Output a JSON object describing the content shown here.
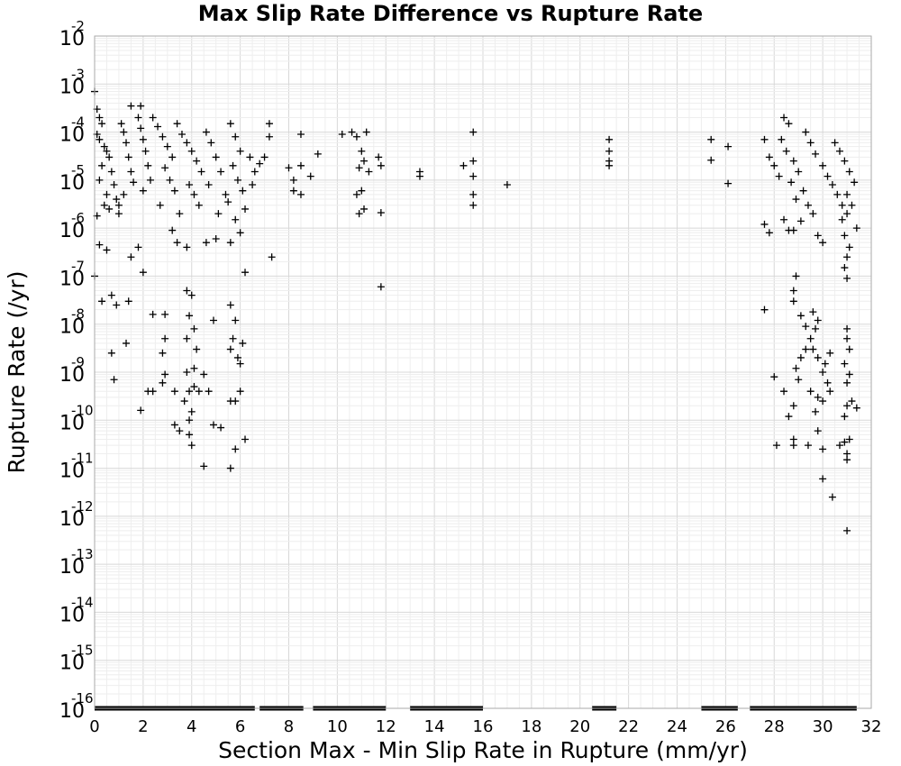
{
  "chart_data": {
    "type": "scatter",
    "title": "Max Slip Rate Difference vs Rupture Rate",
    "xlabel": "Section Max - Min Slip Rate in Rupture (mm/yr)",
    "ylabel": "Rupture Rate (/yr)",
    "xlim": [
      0,
      32
    ],
    "ylim": [
      1e-16,
      0.01
    ],
    "x_scale": "linear",
    "y_scale": "log",
    "grid": true,
    "x_ticks": [
      "0",
      "2",
      "4",
      "6",
      "8",
      "10",
      "12",
      "14",
      "16",
      "18",
      "20",
      "22",
      "24",
      "26",
      "28",
      "30",
      "32"
    ],
    "y_ticks": [
      {
        "base": "10",
        "exp": "-2"
      },
      {
        "base": "10",
        "exp": "-3"
      },
      {
        "base": "10",
        "exp": "-4"
      },
      {
        "base": "10",
        "exp": "-5"
      },
      {
        "base": "10",
        "exp": "-6"
      },
      {
        "base": "10",
        "exp": "-7"
      },
      {
        "base": "10",
        "exp": "-8"
      },
      {
        "base": "10",
        "exp": "-9"
      },
      {
        "base": "10",
        "exp": "-10"
      },
      {
        "base": "10",
        "exp": "-11"
      },
      {
        "base": "10",
        "exp": "-12"
      },
      {
        "base": "10",
        "exp": "-13"
      },
      {
        "base": "10",
        "exp": "-14"
      },
      {
        "base": "10",
        "exp": "-15"
      },
      {
        "base": "10",
        "exp": "-16"
      }
    ],
    "marker": "+",
    "marker_color": "#000000",
    "series": [
      {
        "points": [
          [
            0.0,
            0.0007
          ],
          [
            0.0,
            1e-07
          ],
          [
            0.1,
            0.0003
          ],
          [
            0.2,
            0.0002
          ],
          [
            0.3,
            0.00015
          ],
          [
            0.1,
            9e-05
          ],
          [
            0.2,
            7e-05
          ],
          [
            0.4,
            5e-05
          ],
          [
            0.5,
            4e-05
          ],
          [
            0.6,
            3e-05
          ],
          [
            0.3,
            2e-05
          ],
          [
            0.7,
            1.5e-05
          ],
          [
            0.2,
            1e-05
          ],
          [
            0.8,
            8e-06
          ],
          [
            0.5,
            5e-06
          ],
          [
            0.9,
            4e-06
          ],
          [
            0.4,
            3e-06
          ],
          [
            1.0,
            2e-06
          ],
          [
            0.1,
            1.8e-06
          ],
          [
            0.6,
            2.5e-06
          ],
          [
            1.1,
            0.00015
          ],
          [
            1.2,
            0.0001
          ],
          [
            1.3,
            6e-05
          ],
          [
            1.4,
            3e-05
          ],
          [
            1.5,
            1.5e-05
          ],
          [
            1.6,
            9e-06
          ],
          [
            1.2,
            5e-06
          ],
          [
            1.0,
            3e-06
          ],
          [
            1.8,
            0.0002
          ],
          [
            1.9,
            0.00012
          ],
          [
            2.0,
            7e-05
          ],
          [
            2.1,
            4e-05
          ],
          [
            2.2,
            2e-05
          ],
          [
            2.3,
            1e-05
          ],
          [
            2.0,
            6e-06
          ],
          [
            1.5,
            0.00035
          ],
          [
            1.9,
            0.00035
          ],
          [
            2.4,
            0.0002
          ],
          [
            2.6,
            0.00013
          ],
          [
            2.8,
            8e-05
          ],
          [
            3.0,
            5e-05
          ],
          [
            3.2,
            3e-05
          ],
          [
            2.9,
            1.8e-05
          ],
          [
            3.1,
            1e-05
          ],
          [
            3.3,
            6e-06
          ],
          [
            2.7,
            3e-06
          ],
          [
            3.4,
            0.00015
          ],
          [
            3.6,
            9e-05
          ],
          [
            3.8,
            6e-05
          ],
          [
            4.0,
            4e-05
          ],
          [
            4.2,
            2.5e-05
          ],
          [
            4.4,
            1.5e-05
          ],
          [
            3.9,
            8e-06
          ],
          [
            4.1,
            5e-06
          ],
          [
            4.3,
            3e-06
          ],
          [
            3.5,
            2e-06
          ],
          [
            4.6,
            0.0001
          ],
          [
            4.8,
            6e-05
          ],
          [
            5.0,
            3e-05
          ],
          [
            5.2,
            1.5e-05
          ],
          [
            4.7,
            8e-06
          ],
          [
            5.4,
            5e-06
          ],
          [
            5.1,
            2e-06
          ],
          [
            5.6,
            0.00015
          ],
          [
            5.8,
            8e-05
          ],
          [
            6.0,
            4e-05
          ],
          [
            5.7,
            2e-05
          ],
          [
            5.9,
            1e-05
          ],
          [
            6.1,
            6e-06
          ],
          [
            5.5,
            3.5e-06
          ],
          [
            6.2,
            2.5e-06
          ],
          [
            5.8,
            1.5e-06
          ],
          [
            6.0,
            8e-07
          ],
          [
            5.6,
            5e-07
          ],
          [
            6.4,
            3e-05
          ],
          [
            6.6,
            1.5e-05
          ],
          [
            6.5,
            8e-06
          ],
          [
            6.2,
            1.2e-07
          ],
          [
            0.2,
            4.5e-07
          ],
          [
            0.5,
            3.5e-07
          ],
          [
            1.5,
            2.5e-07
          ],
          [
            1.8,
            4e-07
          ],
          [
            2.0,
            1.2e-07
          ],
          [
            3.2,
            9e-07
          ],
          [
            3.4,
            5e-07
          ],
          [
            3.8,
            4e-07
          ],
          [
            4.6,
            5e-07
          ],
          [
            5.0,
            6e-07
          ],
          [
            0.3,
            3e-08
          ],
          [
            0.7,
            4e-08
          ],
          [
            0.9,
            2.5e-08
          ],
          [
            1.4,
            3e-08
          ],
          [
            2.4,
            1.6e-08
          ],
          [
            2.9,
            1.6e-08
          ],
          [
            3.8,
            5e-08
          ],
          [
            4.0,
            4e-08
          ],
          [
            3.9,
            1.5e-08
          ],
          [
            4.1,
            8e-09
          ],
          [
            3.8,
            5e-09
          ],
          [
            4.2,
            3e-09
          ],
          [
            4.9,
            1.2e-08
          ],
          [
            5.6,
            2.5e-08
          ],
          [
            5.8,
            1.2e-08
          ],
          [
            5.7,
            5e-09
          ],
          [
            6.1,
            4e-09
          ],
          [
            5.9,
            2e-09
          ],
          [
            6.0,
            1.5e-09
          ],
          [
            5.6,
            3e-09
          ],
          [
            1.3,
            4e-09
          ],
          [
            0.7,
            2.5e-09
          ],
          [
            2.8,
            2.5e-09
          ],
          [
            2.9,
            5e-09
          ],
          [
            3.8,
            1e-09
          ],
          [
            4.1,
            1.2e-09
          ],
          [
            4.5,
            9e-10
          ],
          [
            2.9,
            9e-10
          ],
          [
            2.8,
            6e-10
          ],
          [
            2.4,
            4e-10
          ],
          [
            2.2,
            4e-10
          ],
          [
            3.3,
            4e-10
          ],
          [
            3.7,
            2.5e-10
          ],
          [
            3.9,
            4e-10
          ],
          [
            4.1,
            5e-10
          ],
          [
            4.3,
            4e-10
          ],
          [
            4.7,
            4e-10
          ],
          [
            5.6,
            2.5e-10
          ],
          [
            5.8,
            2.5e-10
          ],
          [
            6.0,
            4e-10
          ],
          [
            0.8,
            7e-10
          ],
          [
            1.9,
            1.6e-10
          ],
          [
            3.3,
            8e-11
          ],
          [
            3.5,
            6e-11
          ],
          [
            3.9,
            5e-11
          ],
          [
            4.0,
            3e-11
          ],
          [
            3.9,
            1e-10
          ],
          [
            4.0,
            1.5e-10
          ],
          [
            4.9,
            8e-11
          ],
          [
            5.2,
            7e-11
          ],
          [
            5.8,
            2.5e-11
          ],
          [
            6.2,
            4e-11
          ],
          [
            5.6,
            1e-11
          ],
          [
            4.5,
            1.1e-11
          ],
          [
            6.8,
            2.2e-05
          ],
          [
            7.0,
            3e-05
          ],
          [
            7.2,
            0.00015
          ],
          [
            7.2,
            8e-05
          ],
          [
            7.3,
            2.5e-07
          ],
          [
            8.0,
            1.8e-05
          ],
          [
            8.2,
            1e-05
          ],
          [
            8.2,
            6e-06
          ],
          [
            8.5,
            9e-05
          ],
          [
            8.5,
            2e-05
          ],
          [
            8.5,
            5e-06
          ],
          [
            8.9,
            1.2e-05
          ],
          [
            9.2,
            3.5e-05
          ],
          [
            10.2,
            9e-05
          ],
          [
            10.6,
            0.0001
          ],
          [
            10.8,
            8e-05
          ],
          [
            11.0,
            4e-05
          ],
          [
            11.1,
            2.5e-05
          ],
          [
            10.9,
            1.8e-05
          ],
          [
            11.3,
            1.5e-05
          ],
          [
            11.0,
            6e-06
          ],
          [
            10.8,
            5e-06
          ],
          [
            11.1,
            2.5e-06
          ],
          [
            10.9,
            2e-06
          ],
          [
            11.2,
            0.0001
          ],
          [
            11.7,
            3e-05
          ],
          [
            11.8,
            2e-05
          ],
          [
            11.8,
            2.1e-06
          ],
          [
            11.8,
            6e-08
          ],
          [
            13.4,
            1.5e-05
          ],
          [
            13.4,
            1.2e-05
          ],
          [
            15.2,
            2e-05
          ],
          [
            15.6,
            0.0001
          ],
          [
            15.6,
            2.5e-05
          ],
          [
            15.6,
            1.2e-05
          ],
          [
            15.6,
            5e-06
          ],
          [
            15.6,
            3e-06
          ],
          [
            17.0,
            8e-06
          ],
          [
            21.2,
            7e-05
          ],
          [
            21.2,
            4e-05
          ],
          [
            21.2,
            2.5e-05
          ],
          [
            21.2,
            2e-05
          ],
          [
            25.4,
            7e-05
          ],
          [
            25.4,
            2.6e-05
          ],
          [
            26.1,
            5e-05
          ],
          [
            26.1,
            8.5e-06
          ],
          [
            27.6,
            7e-05
          ],
          [
            27.8,
            3e-05
          ],
          [
            28.0,
            2e-05
          ],
          [
            28.2,
            1.2e-05
          ],
          [
            28.4,
            0.0002
          ],
          [
            28.6,
            0.00015
          ],
          [
            28.3,
            7e-05
          ],
          [
            28.5,
            4e-05
          ],
          [
            28.8,
            2.5e-05
          ],
          [
            29.0,
            1.5e-05
          ],
          [
            28.7,
            9e-06
          ],
          [
            29.2,
            6e-06
          ],
          [
            28.9,
            4e-06
          ],
          [
            29.4,
            3e-06
          ],
          [
            29.6,
            2e-06
          ],
          [
            29.1,
            1.4e-06
          ],
          [
            28.8,
            9e-07
          ],
          [
            29.8,
            7e-07
          ],
          [
            30.0,
            5e-07
          ],
          [
            29.3,
            0.0001
          ],
          [
            29.5,
            6e-05
          ],
          [
            29.7,
            3.5e-05
          ],
          [
            30.0,
            2e-05
          ],
          [
            30.2,
            1.2e-05
          ],
          [
            30.4,
            8e-06
          ],
          [
            30.6,
            5e-06
          ],
          [
            30.8,
            3e-06
          ],
          [
            31.0,
            2e-06
          ],
          [
            30.5,
            6e-05
          ],
          [
            30.7,
            4e-05
          ],
          [
            30.9,
            2.5e-05
          ],
          [
            31.1,
            1.5e-05
          ],
          [
            31.3,
            9e-06
          ],
          [
            31.0,
            5e-06
          ],
          [
            31.2,
            3e-06
          ],
          [
            30.8,
            1.5e-06
          ],
          [
            31.4,
            1e-06
          ],
          [
            30.9,
            7e-07
          ],
          [
            31.1,
            4e-07
          ],
          [
            31.0,
            2.5e-07
          ],
          [
            30.9,
            1.5e-07
          ],
          [
            31.0,
            9e-08
          ],
          [
            27.6,
            1.2e-06
          ],
          [
            27.8,
            8e-07
          ],
          [
            28.4,
            1.5e-06
          ],
          [
            28.6,
            9e-07
          ],
          [
            28.9,
            1e-07
          ],
          [
            28.8,
            5e-08
          ],
          [
            28.8,
            3e-08
          ],
          [
            29.1,
            1.5e-08
          ],
          [
            29.3,
            9e-09
          ],
          [
            29.6,
            1.8e-08
          ],
          [
            29.8,
            1.2e-08
          ],
          [
            29.7,
            8e-09
          ],
          [
            29.5,
            5e-09
          ],
          [
            29.3,
            3e-09
          ],
          [
            29.1,
            2e-09
          ],
          [
            28.9,
            1.2e-09
          ],
          [
            29.6,
            3e-09
          ],
          [
            29.8,
            2e-09
          ],
          [
            30.1,
            1.5e-09
          ],
          [
            30.3,
            2.5e-09
          ],
          [
            30.0,
            1e-09
          ],
          [
            30.2,
            6e-10
          ],
          [
            30.3,
            4e-10
          ],
          [
            29.8,
            3e-10
          ],
          [
            29.5,
            4e-10
          ],
          [
            28.8,
            2e-10
          ],
          [
            28.6,
            1.2e-10
          ],
          [
            28.4,
            4e-10
          ],
          [
            28.0,
            8e-10
          ],
          [
            29.0,
            7e-10
          ],
          [
            30.0,
            2.5e-10
          ],
          [
            29.7,
            1.5e-10
          ],
          [
            31.0,
            8e-09
          ],
          [
            31.0,
            5e-09
          ],
          [
            31.1,
            3e-09
          ],
          [
            30.9,
            1.5e-09
          ],
          [
            31.1,
            9e-10
          ],
          [
            31.0,
            6e-10
          ],
          [
            31.0,
            2e-10
          ],
          [
            31.2,
            2.5e-10
          ],
          [
            31.4,
            1.8e-10
          ],
          [
            30.9,
            1.2e-10
          ],
          [
            31.1,
            4e-11
          ],
          [
            30.9,
            3.5e-11
          ],
          [
            30.7,
            3e-11
          ],
          [
            31.0,
            2e-11
          ],
          [
            31.0,
            1.5e-11
          ],
          [
            30.0,
            2.5e-11
          ],
          [
            30.0,
            6e-12
          ],
          [
            30.4,
            2.5e-12
          ],
          [
            31.0,
            5e-13
          ],
          [
            27.6,
            2e-08
          ],
          [
            28.1,
            3e-11
          ],
          [
            28.8,
            3e-11
          ],
          [
            28.8,
            4e-11
          ],
          [
            29.4,
            3e-11
          ],
          [
            29.8,
            6e-11
          ]
        ]
      }
    ],
    "floor_value": 1e-16,
    "floor_x_ranges": [
      [
        0.0,
        6.6
      ],
      [
        6.8,
        8.6
      ],
      [
        9.0,
        12.0
      ],
      [
        13.0,
        16.0
      ],
      [
        20.5,
        21.5
      ],
      [
        25.0,
        26.5
      ],
      [
        27.0,
        31.4
      ]
    ]
  }
}
